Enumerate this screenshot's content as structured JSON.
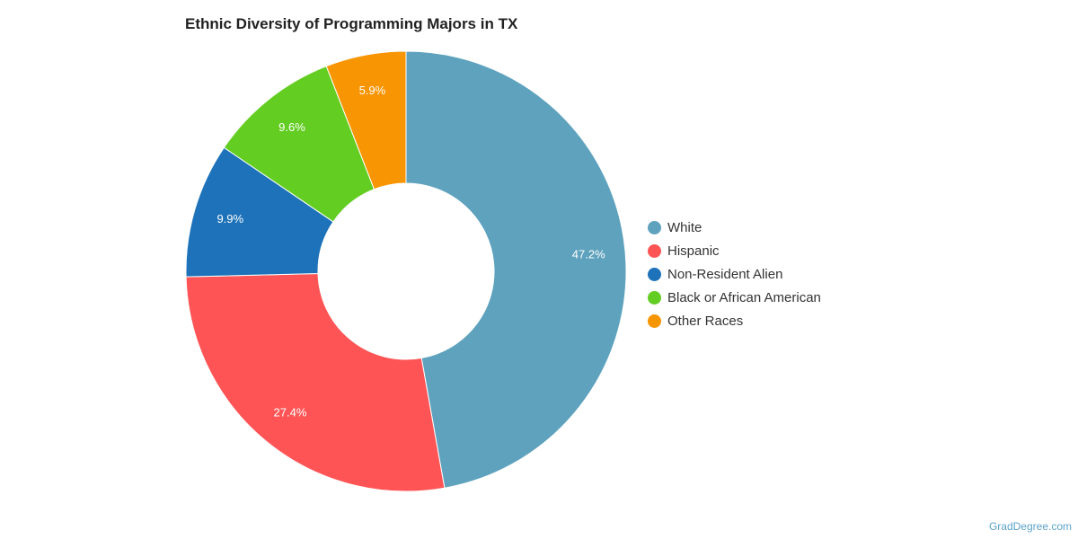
{
  "chart_data": {
    "type": "pie",
    "style": "donut",
    "title": "Ethnic Diversity of Programming Majors in TX",
    "categories": [
      "White",
      "Hispanic",
      "Non-Resident Alien",
      "Black or African American",
      "Other Races"
    ],
    "values": [
      47.2,
      27.4,
      9.9,
      9.6,
      5.9
    ],
    "value_labels": [
      "47.2%",
      "27.4%",
      "9.9%",
      "9.6%",
      "5.9%"
    ],
    "colors": [
      "#5ea2be",
      "#fe5455",
      "#1e72b9",
      "#63cd22",
      "#f89502"
    ],
    "legend": {
      "position": "right",
      "entries": [
        "White",
        "Hispanic",
        "Non-Resident Alien",
        "Black or African American",
        "Other Races"
      ]
    }
  },
  "footer": {
    "source": "GradDegree.com"
  }
}
